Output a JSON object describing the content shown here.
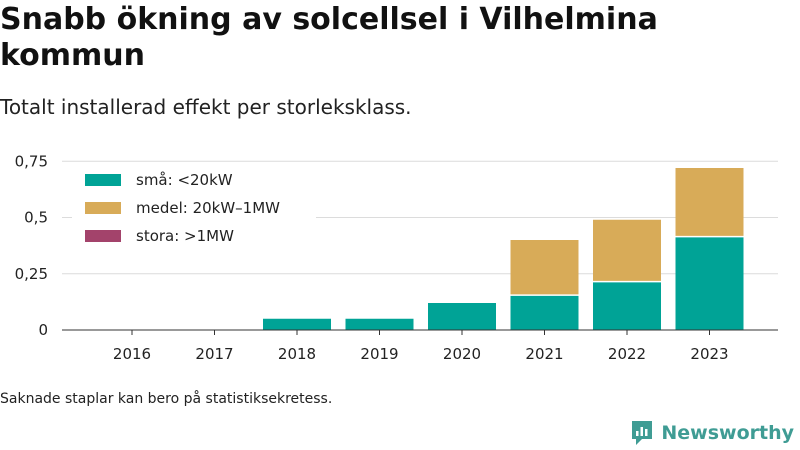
{
  "title": "Snabb ökning av solcellsel i Vilhelmina kommun",
  "subtitle": "Totalt installerad effekt per storleksklass.",
  "note": "Saknade staplar kan bero på statistiksekretess.",
  "brand": {
    "name": "Newsworthy",
    "icon": "newsworthy-logo-icon",
    "color": "#3f9c94"
  },
  "chart_data": {
    "type": "bar",
    "stacked": true,
    "categories": [
      "2016",
      "2017",
      "2018",
      "2019",
      "2020",
      "2021",
      "2022",
      "2023"
    ],
    "series": [
      {
        "name": "små: <20kW",
        "color": "#00a396",
        "values": [
          null,
          null,
          0.05,
          0.05,
          0.12,
          0.155,
          0.215,
          0.415
        ]
      },
      {
        "name": "medel: 20kW–1MW",
        "color": "#d8ab58",
        "values": [
          null,
          null,
          0,
          0,
          0,
          0.245,
          0.275,
          0.305
        ]
      },
      {
        "name": "stora: >1MW",
        "color": "#a3436b",
        "values": [
          null,
          null,
          0,
          0,
          0,
          0,
          0,
          0
        ]
      }
    ],
    "yticks": [
      0,
      0.25,
      0.5,
      0.75
    ],
    "ytick_labels": [
      "0",
      "0,25",
      "0,5",
      "0,75"
    ],
    "ylim": [
      0,
      0.8
    ],
    "grid": true,
    "legend_position": "top-left"
  }
}
